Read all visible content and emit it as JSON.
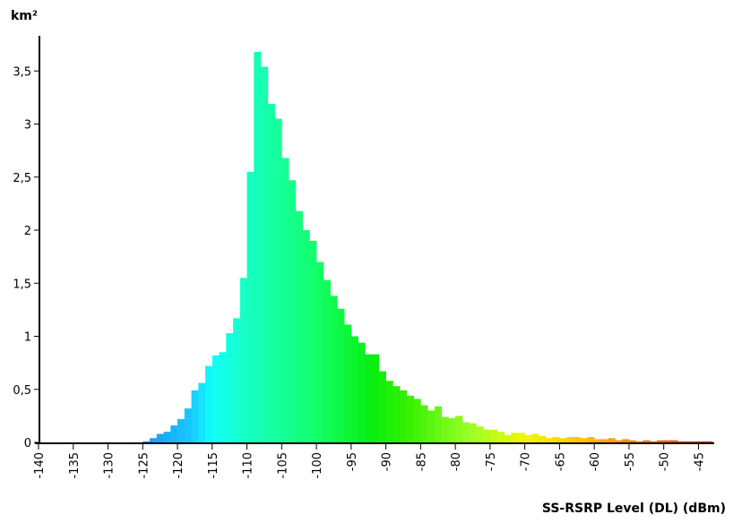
{
  "chart_data": {
    "type": "bar",
    "ylabel": "km²",
    "xlabel": "SS-RSRP Level (DL) (dBm)",
    "xlim": [
      -140,
      -43
    ],
    "ylim": [
      0,
      3.8
    ],
    "bin_width": 1,
    "x_ticks": [
      "-140",
      "-135",
      "-130",
      "-125",
      "-120",
      "-115",
      "-110",
      "-105",
      "-100",
      "-95",
      "-90",
      "-85",
      "-80",
      "-75",
      "-70",
      "-65",
      "-60",
      "-55",
      "-50",
      "-45"
    ],
    "y_ticks": [
      "0",
      "0,5",
      "1",
      "1,5",
      "2",
      "2,5",
      "3",
      "3,5"
    ],
    "grid": false,
    "legend": "none",
    "bins_start": [
      -125,
      -124,
      -123,
      -122,
      -121,
      -120,
      -119,
      -118,
      -117,
      -116,
      -115,
      -114,
      -113,
      -112,
      -111,
      -110,
      -109,
      -108,
      -107,
      -106,
      -105,
      -104,
      -103,
      -102,
      -101,
      -100,
      -99,
      -98,
      -97,
      -96,
      -95,
      -94,
      -93,
      -92,
      -91,
      -90,
      -89,
      -88,
      -87,
      -86,
      -85,
      -84,
      -83,
      -82,
      -81,
      -80,
      -79,
      -78,
      -77,
      -76,
      -75,
      -74,
      -73,
      -72,
      -71,
      -70,
      -69,
      -68,
      -67,
      -66,
      -65,
      -64,
      -63,
      -62,
      -61,
      -60,
      -59,
      -58,
      -57,
      -56,
      -55,
      -54,
      -53,
      -52,
      -51,
      -50,
      -49,
      -48,
      -47,
      -46,
      -45,
      -44
    ],
    "values": [
      0.01,
      0.04,
      0.08,
      0.1,
      0.16,
      0.22,
      0.32,
      0.49,
      0.56,
      0.72,
      0.82,
      0.85,
      1.03,
      1.17,
      1.55,
      2.55,
      3.68,
      3.54,
      3.19,
      3.05,
      2.68,
      2.47,
      2.18,
      2.0,
      1.9,
      1.7,
      1.53,
      1.38,
      1.26,
      1.11,
      1.0,
      0.94,
      0.83,
      0.83,
      0.67,
      0.58,
      0.53,
      0.49,
      0.44,
      0.41,
      0.35,
      0.3,
      0.34,
      0.24,
      0.23,
      0.25,
      0.19,
      0.18,
      0.15,
      0.12,
      0.12,
      0.1,
      0.07,
      0.09,
      0.09,
      0.07,
      0.08,
      0.06,
      0.04,
      0.05,
      0.04,
      0.05,
      0.05,
      0.04,
      0.05,
      0.03,
      0.03,
      0.04,
      0.02,
      0.03,
      0.02,
      0.01,
      0.02,
      0.01,
      0.02,
      0.02,
      0.02,
      0.01,
      0.01,
      0.01,
      0.01,
      0.01
    ],
    "color_stops": [
      {
        "x": -125,
        "color": "#1398f0"
      },
      {
        "x": -118,
        "color": "#1ac8ff"
      },
      {
        "x": -115,
        "color": "#10fff8"
      },
      {
        "x": -111,
        "color": "#16ffcc"
      },
      {
        "x": -100,
        "color": "#13ff6a"
      },
      {
        "x": -92,
        "color": "#08ef10"
      },
      {
        "x": -87,
        "color": "#33f000"
      },
      {
        "x": -78,
        "color": "#9aff28"
      },
      {
        "x": -70,
        "color": "#f0f800"
      },
      {
        "x": -62,
        "color": "#ffc800"
      },
      {
        "x": -55,
        "color": "#ff8800"
      },
      {
        "x": -44,
        "color": "#e04000"
      }
    ]
  }
}
